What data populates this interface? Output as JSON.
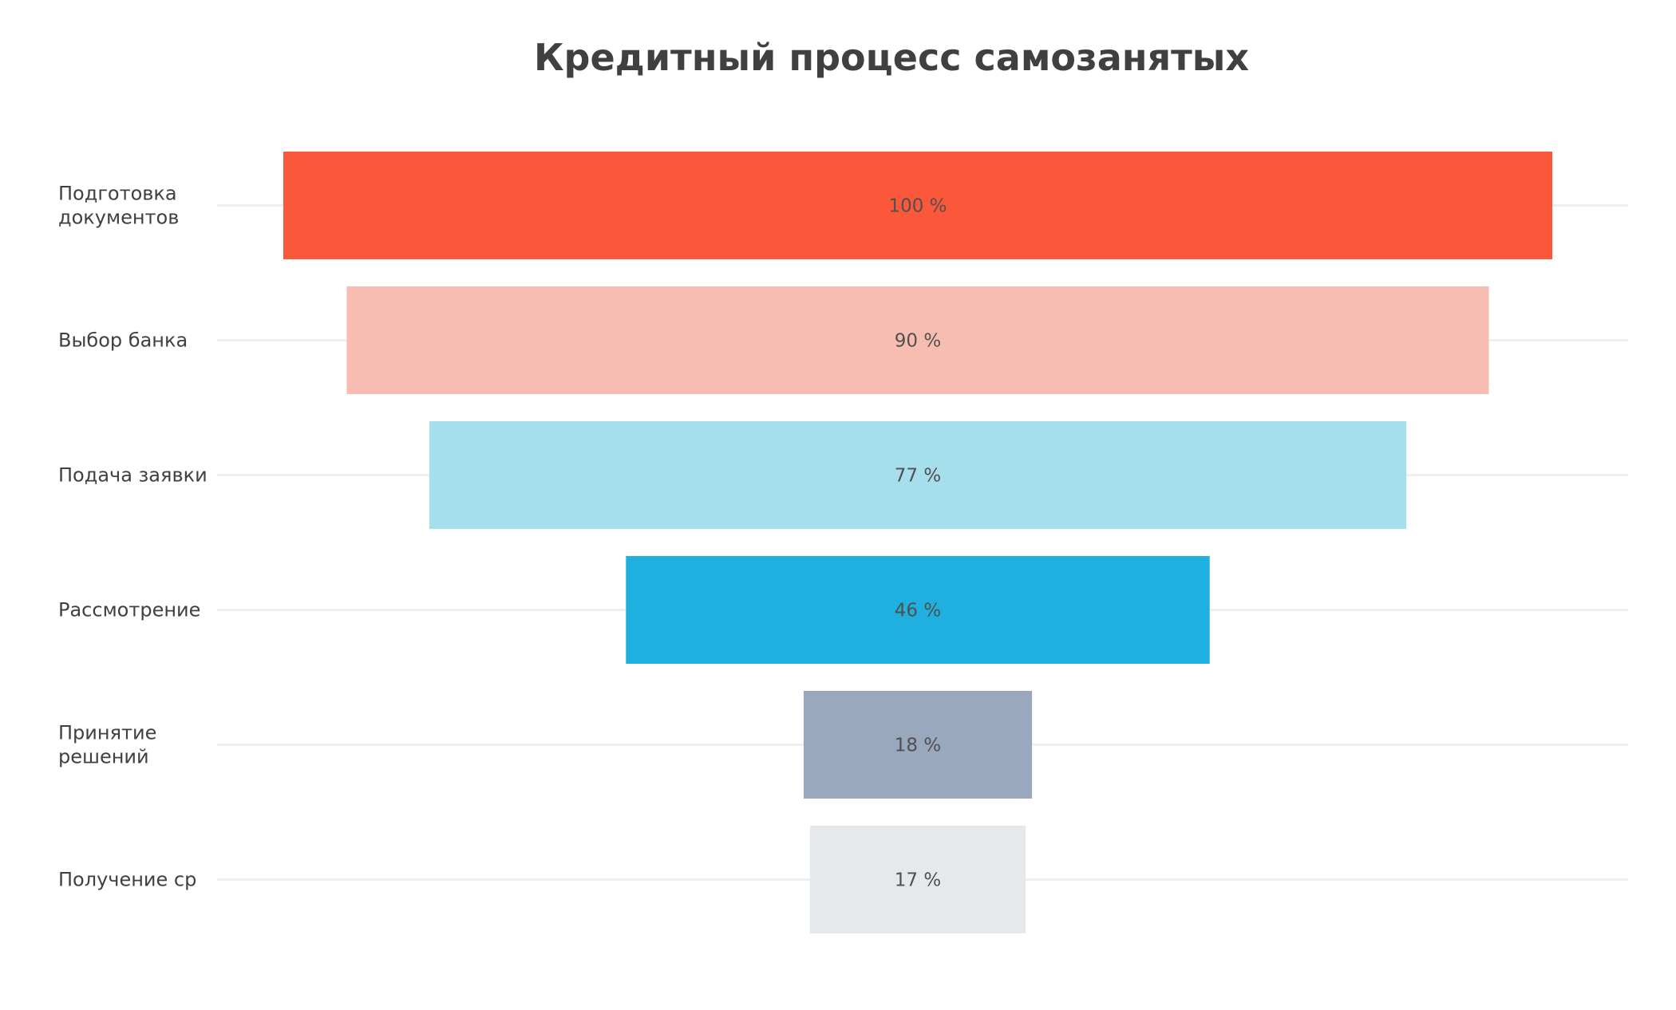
{
  "chart_data": {
    "type": "funnel",
    "title": "Кредитный процесс самозанятых",
    "categories": [
      "Подготовка документов",
      "Выбор банка",
      "Подача заявки",
      "Рассмотрение",
      "Принятие решений",
      "Получение ср"
    ],
    "values": [
      100,
      90,
      77,
      46,
      18,
      17
    ],
    "value_labels": [
      "100 %",
      "90 %",
      "77 %",
      "46 %",
      "18 %",
      "17 %"
    ],
    "colors": [
      "#fb583b",
      "#f8bdb2",
      "#a6dfec",
      "#20b0df",
      "#9aa8bd",
      "#e6e9ec"
    ],
    "xlim": [
      0,
      100
    ]
  }
}
